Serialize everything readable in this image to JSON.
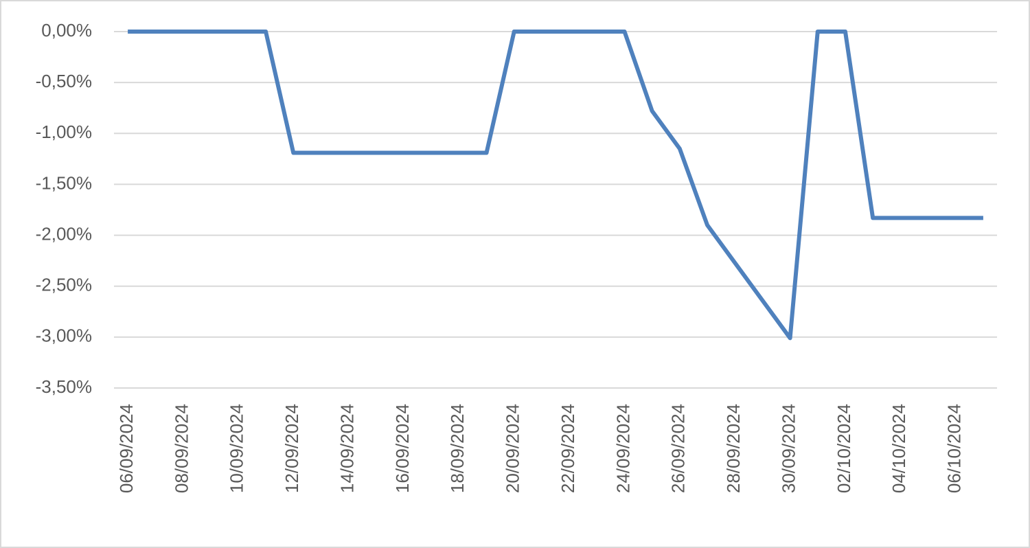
{
  "chart_data": {
    "type": "line",
    "categories": [
      "06/09/2024",
      null,
      "08/09/2024",
      null,
      "10/09/2024",
      null,
      "12/09/2024",
      null,
      "14/09/2024",
      null,
      "16/09/2024",
      null,
      "18/09/2024",
      null,
      "20/09/2024",
      null,
      "22/09/2024",
      null,
      "24/09/2024",
      null,
      "26/09/2024",
      null,
      "28/09/2024",
      null,
      "30/09/2024",
      null,
      "02/10/2024",
      null,
      "04/10/2024",
      null,
      "06/10/2024",
      null
    ],
    "series": [
      {
        "color": "#4f81bd",
        "values": [
          0,
          0,
          0,
          0,
          0,
          0,
          -1.19,
          -1.19,
          -1.19,
          -1.19,
          -1.19,
          -1.19,
          -1.19,
          -1.19,
          0,
          0,
          0,
          0,
          0,
          -0.78,
          -1.15,
          -1.9,
          -2.27,
          -2.64,
          -3.01,
          0,
          0,
          -1.83,
          -1.83,
          -1.83,
          -1.83,
          -1.83
        ]
      }
    ],
    "ylim": [
      -3.5,
      0
    ],
    "yticks": [
      {
        "value": 0,
        "label": "0,00%"
      },
      {
        "value": -0.5,
        "label": "-0,50%"
      },
      {
        "value": -1,
        "label": "-1,00%"
      },
      {
        "value": -1.5,
        "label": "-1,50%"
      },
      {
        "value": -2,
        "label": "-2,00%"
      },
      {
        "value": -2.5,
        "label": "-2,50%"
      },
      {
        "value": -3,
        "label": "-3,00%"
      },
      {
        "value": -3.5,
        "label": "-3,50%"
      }
    ],
    "grid": true
  }
}
